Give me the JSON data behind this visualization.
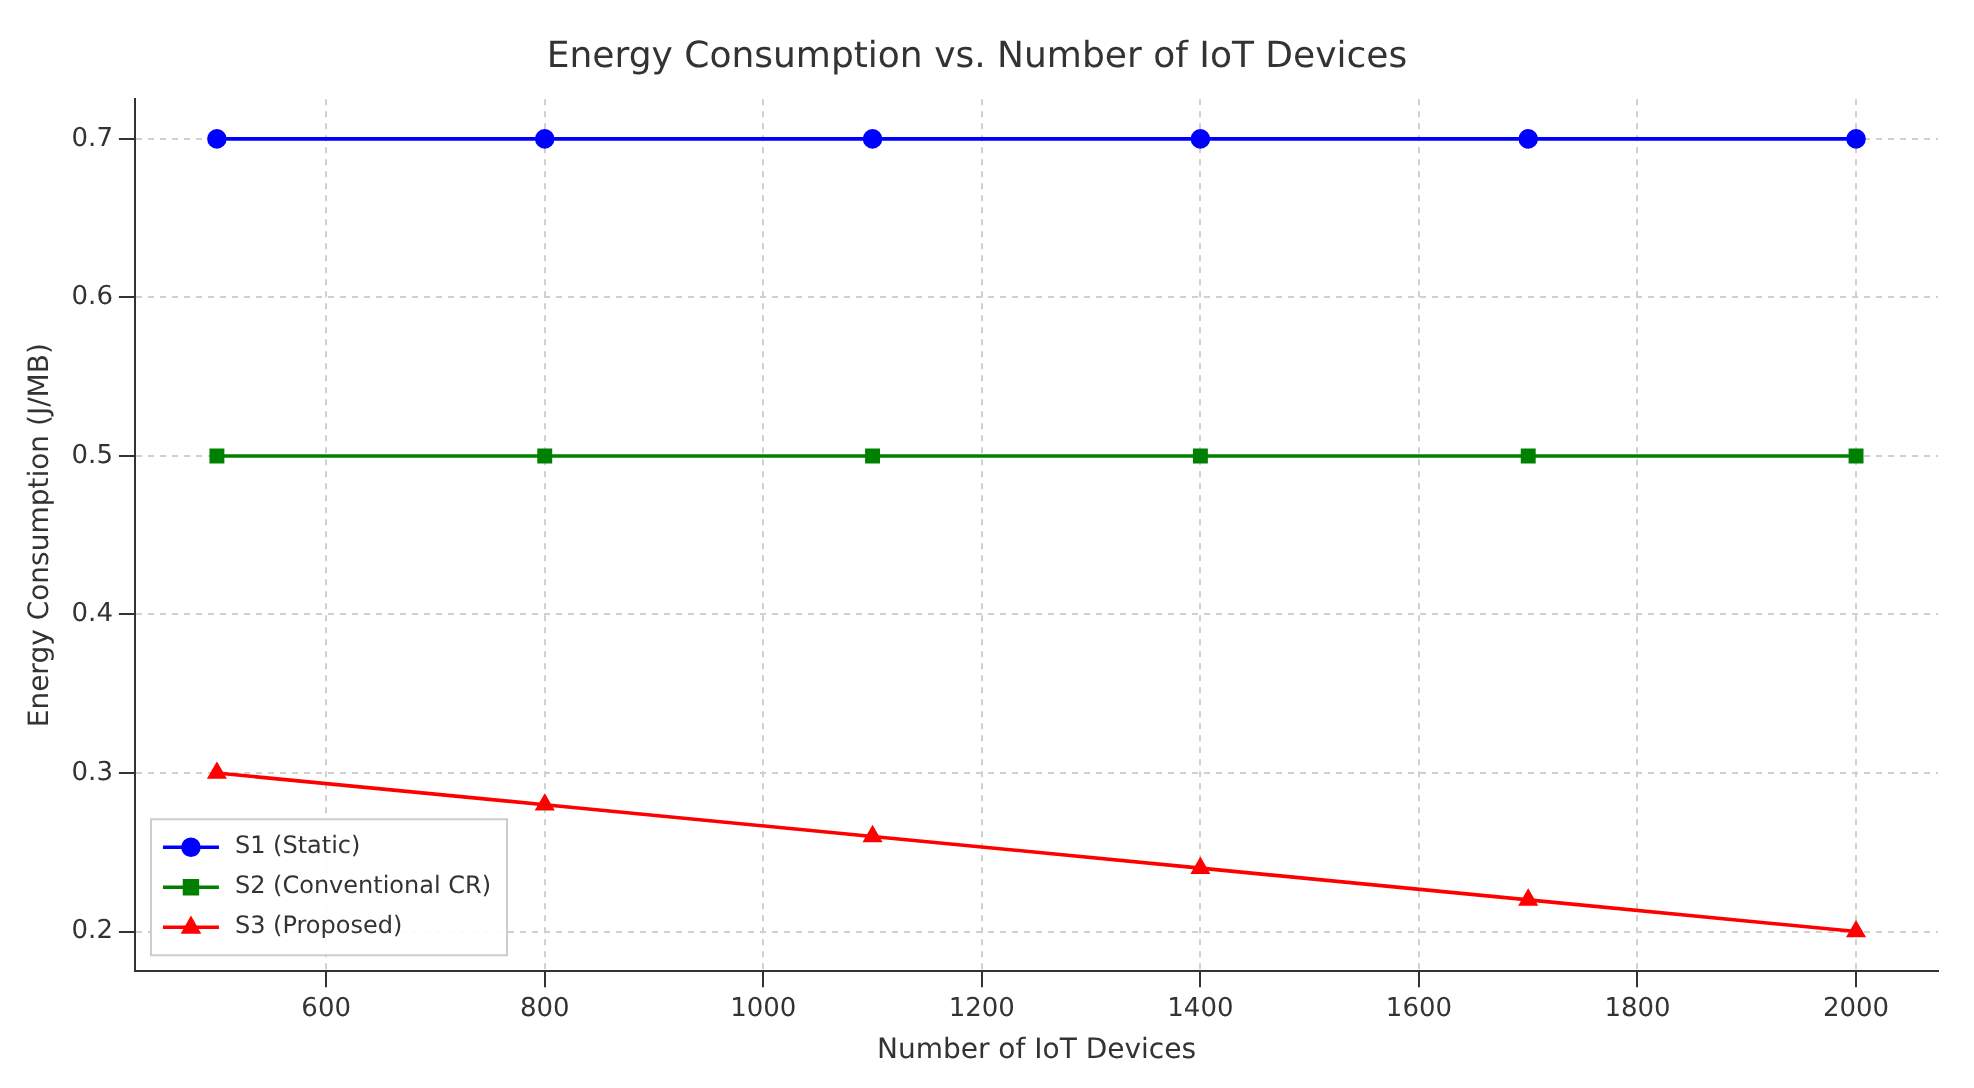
{
  "chart_data": {
    "type": "line",
    "title": "Energy Consumption vs. Number of IoT Devices",
    "xlabel": "Number of IoT Devices",
    "ylabel": "Energy Consumption (J/MB)",
    "x": [
      500,
      800,
      1100,
      1400,
      1700,
      2000
    ],
    "series": [
      {
        "name": "S1 (Static)",
        "color": "#0000ff",
        "marker": "circle",
        "values": [
          0.7,
          0.7,
          0.7,
          0.7,
          0.7,
          0.7
        ]
      },
      {
        "name": "S2 (Conventional CR)",
        "color": "#008000",
        "marker": "square",
        "values": [
          0.5,
          0.5,
          0.5,
          0.5,
          0.5,
          0.5
        ]
      },
      {
        "name": "S3 (Proposed)",
        "color": "#ff0000",
        "marker": "triangle",
        "values": [
          0.3,
          0.28,
          0.26,
          0.24,
          0.22,
          0.2
        ]
      }
    ],
    "xlim": [
      425,
      2075
    ],
    "xticks": [
      600,
      800,
      1000,
      1200,
      1400,
      1600,
      1800,
      2000
    ],
    "ylim": [
      0.175,
      0.725
    ],
    "yticks": [
      0.2,
      0.3,
      0.4,
      0.5,
      0.6,
      0.7
    ],
    "grid": true,
    "legend": "bottom left",
    "line_style": "solid"
  }
}
